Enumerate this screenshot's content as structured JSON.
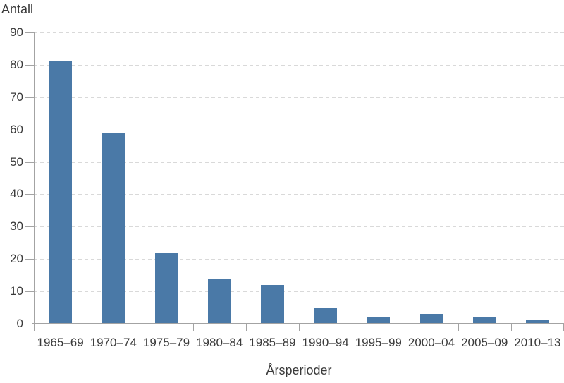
{
  "chart_data": {
    "type": "bar",
    "title": "",
    "ylabel": "Antall",
    "xlabel": "Årsperioder",
    "categories": [
      "1965–69",
      "1970–74",
      "1975–79",
      "1980–84",
      "1985–89",
      "1990–94",
      "1995–99",
      "2000–04",
      "2005–09",
      "2010–13"
    ],
    "values": [
      81,
      59,
      22,
      14,
      12,
      5,
      2,
      3,
      2,
      1
    ],
    "ylim": [
      0,
      90
    ],
    "yticks": [
      0,
      10,
      20,
      30,
      40,
      50,
      60,
      70,
      80,
      90
    ],
    "grid": "horizontal-dashed",
    "legend": "none",
    "colors": {
      "bar": "#4a79a7",
      "axis": "#a3a3a3",
      "grid": "#d9d9d9",
      "text": "#3a3a3a"
    }
  }
}
